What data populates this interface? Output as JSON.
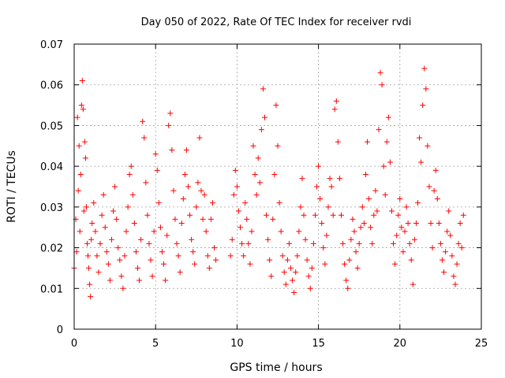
{
  "chart_data": {
    "type": "scatter",
    "title": "Day 050 of 2022, Rate Of TEC Index for receiver rvdi",
    "xlabel": "GPS time / hours",
    "ylabel": "ROTI / TECUs",
    "xlim": [
      0,
      25
    ],
    "ylim": [
      0,
      0.07
    ],
    "xticks": [
      0,
      5,
      10,
      15,
      20,
      25
    ],
    "xtick_labels": [
      "0",
      "5",
      "10",
      "15",
      "20",
      "25"
    ],
    "yticks": [
      0,
      0.01,
      0.02,
      0.03,
      0.04,
      0.05,
      0.06,
      0.07
    ],
    "ytick_labels": [
      "0",
      "0.01",
      "0.02",
      "0.03",
      "0.04",
      "0.05",
      "0.06",
      "0.07"
    ],
    "grid": true,
    "marker": "+",
    "color": "#ff0000",
    "series": [
      {
        "points": [
          [
            0.0,
            0.015
          ],
          [
            0.1,
            0.027
          ],
          [
            0.15,
            0.019
          ],
          [
            0.2,
            0.052
          ],
          [
            0.25,
            0.034
          ],
          [
            0.3,
            0.045
          ],
          [
            0.35,
            0.024
          ],
          [
            0.4,
            0.038
          ],
          [
            0.45,
            0.055
          ],
          [
            0.5,
            0.061
          ],
          [
            0.55,
            0.054
          ],
          [
            0.6,
            0.029
          ],
          [
            0.65,
            0.046
          ],
          [
            0.7,
            0.042
          ],
          [
            0.75,
            0.03
          ],
          [
            0.8,
            0.021
          ],
          [
            0.85,
            0.018
          ],
          [
            0.9,
            0.015
          ],
          [
            0.95,
            0.011
          ],
          [
            1.0,
            0.008
          ],
          [
            1.05,
            0.022
          ],
          [
            1.1,
            0.026
          ],
          [
            1.2,
            0.031
          ],
          [
            1.3,
            0.024
          ],
          [
            1.4,
            0.018
          ],
          [
            1.5,
            0.014
          ],
          [
            1.6,
            0.021
          ],
          [
            1.7,
            0.028
          ],
          [
            1.8,
            0.033
          ],
          [
            1.9,
            0.025
          ],
          [
            2.0,
            0.019
          ],
          [
            2.1,
            0.016
          ],
          [
            2.2,
            0.012
          ],
          [
            2.3,
            0.022
          ],
          [
            2.4,
            0.029
          ],
          [
            2.5,
            0.035
          ],
          [
            2.6,
            0.027
          ],
          [
            2.7,
            0.02
          ],
          [
            2.8,
            0.017
          ],
          [
            2.9,
            0.013
          ],
          [
            3.0,
            0.01
          ],
          [
            3.1,
            0.018
          ],
          [
            3.2,
            0.024
          ],
          [
            3.3,
            0.03
          ],
          [
            3.4,
            0.038
          ],
          [
            3.5,
            0.04
          ],
          [
            3.6,
            0.033
          ],
          [
            3.7,
            0.026
          ],
          [
            3.8,
            0.019
          ],
          [
            3.9,
            0.015
          ],
          [
            4.0,
            0.012
          ],
          [
            4.1,
            0.022
          ],
          [
            4.2,
            0.051
          ],
          [
            4.3,
            0.047
          ],
          [
            4.4,
            0.036
          ],
          [
            4.5,
            0.028
          ],
          [
            4.6,
            0.021
          ],
          [
            4.7,
            0.017
          ],
          [
            4.8,
            0.013
          ],
          [
            4.9,
            0.024
          ],
          [
            5.0,
            0.043
          ],
          [
            5.1,
            0.039
          ],
          [
            5.2,
            0.031
          ],
          [
            5.3,
            0.025
          ],
          [
            5.4,
            0.019
          ],
          [
            5.5,
            0.016
          ],
          [
            5.6,
            0.012
          ],
          [
            5.7,
            0.023
          ],
          [
            5.8,
            0.05
          ],
          [
            5.9,
            0.053
          ],
          [
            6.0,
            0.044
          ],
          [
            6.1,
            0.034
          ],
          [
            6.2,
            0.027
          ],
          [
            6.3,
            0.021
          ],
          [
            6.4,
            0.018
          ],
          [
            6.5,
            0.014
          ],
          [
            6.6,
            0.026
          ],
          [
            6.7,
            0.032
          ],
          [
            6.8,
            0.038
          ],
          [
            6.9,
            0.044
          ],
          [
            7.0,
            0.035
          ],
          [
            7.1,
            0.028
          ],
          [
            7.2,
            0.022
          ],
          [
            7.3,
            0.019
          ],
          [
            7.4,
            0.016
          ],
          [
            7.5,
            0.03
          ],
          [
            7.6,
            0.036
          ],
          [
            7.7,
            0.047
          ],
          [
            7.8,
            0.034
          ],
          [
            7.9,
            0.027
          ],
          [
            8.0,
            0.033
          ],
          [
            8.1,
            0.024
          ],
          [
            8.2,
            0.018
          ],
          [
            8.3,
            0.015
          ],
          [
            8.4,
            0.027
          ],
          [
            8.5,
            0.031
          ],
          [
            8.6,
            0.02
          ],
          [
            8.7,
            0.017
          ],
          [
            9.6,
            0.018
          ],
          [
            9.7,
            0.022
          ],
          [
            9.8,
            0.033
          ],
          [
            9.9,
            0.039
          ],
          [
            10.0,
            0.035
          ],
          [
            10.1,
            0.029
          ],
          [
            10.2,
            0.025
          ],
          [
            10.3,
            0.021
          ],
          [
            10.4,
            0.018
          ],
          [
            10.5,
            0.031
          ],
          [
            10.6,
            0.027
          ],
          [
            10.7,
            0.021
          ],
          [
            10.8,
            0.016
          ],
          [
            10.9,
            0.024
          ],
          [
            11.0,
            0.045
          ],
          [
            11.1,
            0.038
          ],
          [
            11.2,
            0.033
          ],
          [
            11.3,
            0.042
          ],
          [
            11.4,
            0.036
          ],
          [
            11.5,
            0.049
          ],
          [
            11.6,
            0.059
          ],
          [
            11.7,
            0.052
          ],
          [
            11.8,
            0.028
          ],
          [
            11.9,
            0.022
          ],
          [
            12.0,
            0.017
          ],
          [
            12.1,
            0.013
          ],
          [
            12.2,
            0.027
          ],
          [
            12.3,
            0.038
          ],
          [
            12.4,
            0.055
          ],
          [
            12.5,
            0.045
          ],
          [
            12.6,
            0.031
          ],
          [
            12.7,
            0.024
          ],
          [
            12.8,
            0.018
          ],
          [
            12.9,
            0.014
          ],
          [
            13.0,
            0.011
          ],
          [
            13.1,
            0.017
          ],
          [
            13.2,
            0.021
          ],
          [
            13.3,
            0.015
          ],
          [
            13.4,
            0.012
          ],
          [
            13.5,
            0.009
          ],
          [
            13.6,
            0.014
          ],
          [
            13.7,
            0.018
          ],
          [
            13.8,
            0.024
          ],
          [
            13.9,
            0.03
          ],
          [
            14.0,
            0.037
          ],
          [
            14.1,
            0.028
          ],
          [
            14.2,
            0.022
          ],
          [
            14.3,
            0.017
          ],
          [
            14.4,
            0.013
          ],
          [
            14.5,
            0.01
          ],
          [
            14.6,
            0.015
          ],
          [
            14.7,
            0.021
          ],
          [
            14.8,
            0.028
          ],
          [
            14.9,
            0.035
          ],
          [
            15.0,
            0.04
          ],
          [
            15.1,
            0.032
          ],
          [
            15.2,
            0.026
          ],
          [
            15.3,
            0.02
          ],
          [
            15.4,
            0.016
          ],
          [
            15.5,
            0.023
          ],
          [
            15.6,
            0.03
          ],
          [
            15.7,
            0.037
          ],
          [
            15.8,
            0.035
          ],
          [
            15.9,
            0.028
          ],
          [
            16.0,
            0.054
          ],
          [
            16.1,
            0.056
          ],
          [
            16.2,
            0.046
          ],
          [
            16.3,
            0.037
          ],
          [
            16.4,
            0.028
          ],
          [
            16.5,
            0.021
          ],
          [
            16.6,
            0.016
          ],
          [
            16.7,
            0.012
          ],
          [
            16.8,
            0.01
          ],
          [
            16.9,
            0.017
          ],
          [
            17.0,
            0.022
          ],
          [
            17.1,
            0.027
          ],
          [
            17.2,
            0.024
          ],
          [
            17.3,
            0.019
          ],
          [
            17.4,
            0.015
          ],
          [
            17.5,
            0.021
          ],
          [
            17.6,
            0.025
          ],
          [
            17.7,
            0.03
          ],
          [
            17.8,
            0.026
          ],
          [
            17.9,
            0.038
          ],
          [
            18.0,
            0.046
          ],
          [
            18.1,
            0.032
          ],
          [
            18.2,
            0.025
          ],
          [
            18.3,
            0.021
          ],
          [
            18.4,
            0.028
          ],
          [
            18.5,
            0.034
          ],
          [
            18.6,
            0.029
          ],
          [
            18.7,
            0.049
          ],
          [
            18.8,
            0.063
          ],
          [
            18.9,
            0.06
          ],
          [
            19.0,
            0.04
          ],
          [
            19.1,
            0.033
          ],
          [
            19.2,
            0.046
          ],
          [
            19.3,
            0.052
          ],
          [
            19.4,
            0.041
          ],
          [
            19.5,
            0.029
          ],
          [
            19.6,
            0.021
          ],
          [
            19.7,
            0.016
          ],
          [
            19.8,
            0.023
          ],
          [
            19.9,
            0.028
          ],
          [
            20.0,
            0.032
          ],
          [
            20.1,
            0.025
          ],
          [
            20.2,
            0.019
          ],
          [
            20.3,
            0.024
          ],
          [
            20.4,
            0.03
          ],
          [
            20.5,
            0.026
          ],
          [
            20.6,
            0.021
          ],
          [
            20.7,
            0.017
          ],
          [
            20.8,
            0.011
          ],
          [
            20.9,
            0.022
          ],
          [
            21.0,
            0.026
          ],
          [
            21.1,
            0.031
          ],
          [
            21.2,
            0.047
          ],
          [
            21.3,
            0.041
          ],
          [
            21.4,
            0.055
          ],
          [
            21.5,
            0.064
          ],
          [
            21.6,
            0.059
          ],
          [
            21.7,
            0.045
          ],
          [
            21.8,
            0.035
          ],
          [
            21.9,
            0.026
          ],
          [
            22.0,
            0.02
          ],
          [
            22.1,
            0.034
          ],
          [
            22.2,
            0.039
          ],
          [
            22.3,
            0.032
          ],
          [
            22.4,
            0.026
          ],
          [
            22.5,
            0.021
          ],
          [
            22.6,
            0.017
          ],
          [
            22.7,
            0.014
          ],
          [
            22.8,
            0.019
          ],
          [
            22.9,
            0.024
          ],
          [
            23.0,
            0.029
          ],
          [
            23.1,
            0.023
          ],
          [
            23.2,
            0.018
          ],
          [
            23.3,
            0.013
          ],
          [
            23.4,
            0.011
          ],
          [
            23.5,
            0.016
          ],
          [
            23.6,
            0.021
          ],
          [
            23.7,
            0.026
          ],
          [
            23.8,
            0.02
          ],
          [
            23.9,
            0.028
          ]
        ]
      }
    ]
  }
}
